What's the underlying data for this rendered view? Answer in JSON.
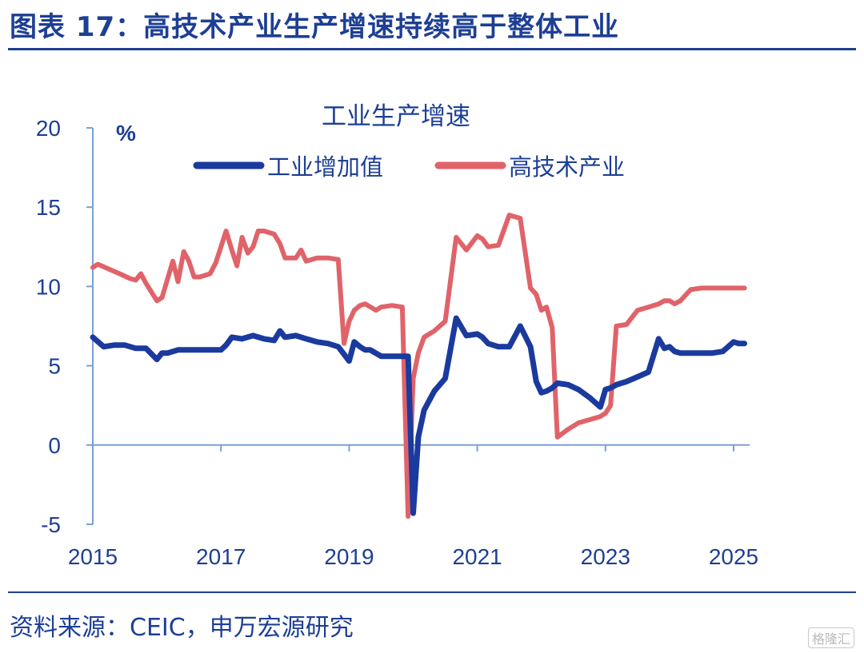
{
  "header": {
    "title": "图表 17：高技术产业生产增速持续高于整体工业"
  },
  "footer": {
    "source": "资料来源：CEIC，申万宏源研究",
    "watermark": "格隆汇"
  },
  "chart_data": {
    "type": "line",
    "title": "工业生产增速",
    "ylabel": "%",
    "xlabel": "",
    "ylim": [
      -5,
      20
    ],
    "yticks": [
      -5,
      0,
      5,
      10,
      15,
      20
    ],
    "xlim": [
      2015,
      2025.25
    ],
    "xticks": [
      2015,
      2017,
      2019,
      2021,
      2023,
      2025
    ],
    "legend": "top-center",
    "grid": false,
    "series": [
      {
        "name": "工业增加值",
        "color": "#1a3a9e",
        "x": [
          2015.0,
          2015.17,
          2015.33,
          2015.5,
          2015.67,
          2015.83,
          2016.0,
          2016.08,
          2016.17,
          2016.33,
          2016.5,
          2016.67,
          2016.83,
          2017.0,
          2017.08,
          2017.17,
          2017.33,
          2017.5,
          2017.67,
          2017.83,
          2017.92,
          2018.0,
          2018.17,
          2018.33,
          2018.5,
          2018.67,
          2018.83,
          2019.0,
          2019.08,
          2019.17,
          2019.25,
          2019.33,
          2019.5,
          2019.67,
          2019.83,
          2019.92,
          2020.0,
          2020.08,
          2020.17,
          2020.25,
          2020.33,
          2020.5,
          2020.67,
          2020.83,
          2021.0,
          2021.08,
          2021.17,
          2021.33,
          2021.5,
          2021.67,
          2021.83,
          2021.92,
          2022.0,
          2022.08,
          2022.17,
          2022.25,
          2022.42,
          2022.58,
          2022.75,
          2022.92,
          2023.0,
          2023.08,
          2023.17,
          2023.33,
          2023.5,
          2023.67,
          2023.83,
          2023.92,
          2024.0,
          2024.08,
          2024.17,
          2024.33,
          2024.5,
          2024.67,
          2024.83,
          2025.0,
          2025.08,
          2025.17
        ],
        "values": [
          6.8,
          6.2,
          6.3,
          6.3,
          6.1,
          6.1,
          5.4,
          5.8,
          5.8,
          6.0,
          6.0,
          6.0,
          6.0,
          6.0,
          6.3,
          6.8,
          6.7,
          6.9,
          6.7,
          6.6,
          7.2,
          6.8,
          6.9,
          6.7,
          6.5,
          6.4,
          6.2,
          5.3,
          6.5,
          6.2,
          6.0,
          6.0,
          5.6,
          5.6,
          5.6,
          5.6,
          -4.3,
          0.5,
          2.2,
          2.8,
          3.4,
          4.2,
          8.0,
          6.9,
          7.0,
          6.8,
          6.4,
          6.2,
          6.2,
          7.5,
          6.2,
          4.0,
          3.3,
          3.4,
          3.6,
          3.9,
          3.8,
          3.5,
          3.0,
          2.4,
          3.5,
          3.6,
          3.8,
          4.0,
          4.3,
          4.6,
          6.7,
          6.1,
          6.2,
          5.9,
          5.8,
          5.8,
          5.8,
          5.8,
          5.9,
          6.5,
          6.4,
          6.4
        ]
      },
      {
        "name": "高技术产业",
        "color": "#e0636a",
        "x": [
          2015.0,
          2015.08,
          2015.25,
          2015.42,
          2015.58,
          2015.67,
          2015.75,
          2015.83,
          2016.0,
          2016.08,
          2016.25,
          2016.33,
          2016.42,
          2016.5,
          2016.58,
          2016.67,
          2016.83,
          2016.92,
          2017.0,
          2017.08,
          2017.17,
          2017.25,
          2017.33,
          2017.42,
          2017.5,
          2017.58,
          2017.67,
          2017.83,
          2017.92,
          2018.0,
          2018.17,
          2018.25,
          2018.33,
          2018.5,
          2018.67,
          2018.83,
          2018.92,
          2019.0,
          2019.08,
          2019.17,
          2019.25,
          2019.42,
          2019.5,
          2019.67,
          2019.83,
          2019.92,
          2020.0,
          2020.08,
          2020.17,
          2020.25,
          2020.33,
          2020.5,
          2020.67,
          2020.83,
          2021.0,
          2021.08,
          2021.17,
          2021.33,
          2021.5,
          2021.67,
          2021.83,
          2021.92,
          2022.0,
          2022.08,
          2022.17,
          2022.25,
          2022.42,
          2022.58,
          2022.75,
          2022.92,
          2023.0,
          2023.08,
          2023.17,
          2023.33,
          2023.5,
          2023.67,
          2023.83,
          2023.92,
          2024.0,
          2024.08,
          2024.17,
          2024.33,
          2024.5,
          2024.67,
          2024.83,
          2025.0,
          2025.08,
          2025.17
        ],
        "values": [
          11.2,
          11.4,
          11.1,
          10.8,
          10.5,
          10.4,
          10.8,
          10.2,
          9.1,
          9.3,
          11.6,
          10.3,
          12.2,
          11.6,
          10.6,
          10.6,
          10.8,
          11.5,
          12.5,
          13.5,
          12.3,
          11.3,
          13.1,
          12.1,
          12.5,
          13.5,
          13.5,
          13.3,
          12.7,
          11.8,
          11.8,
          12.3,
          11.6,
          11.8,
          11.8,
          11.7,
          6.4,
          7.8,
          8.5,
          8.8,
          8.9,
          8.5,
          8.7,
          8.8,
          8.7,
          -4.5,
          4.2,
          5.8,
          6.8,
          7.0,
          7.2,
          7.8,
          13.1,
          12.3,
          13.2,
          13.0,
          12.5,
          12.6,
          14.5,
          14.3,
          9.9,
          9.5,
          8.5,
          8.7,
          7.4,
          0.5,
          1.0,
          1.4,
          1.6,
          1.8,
          2.0,
          2.5,
          7.5,
          7.6,
          8.5,
          8.7,
          8.9,
          9.1,
          9.1,
          8.9,
          9.1,
          9.8,
          9.9,
          9.9,
          9.9,
          9.9,
          9.9,
          9.9
        ]
      }
    ]
  }
}
